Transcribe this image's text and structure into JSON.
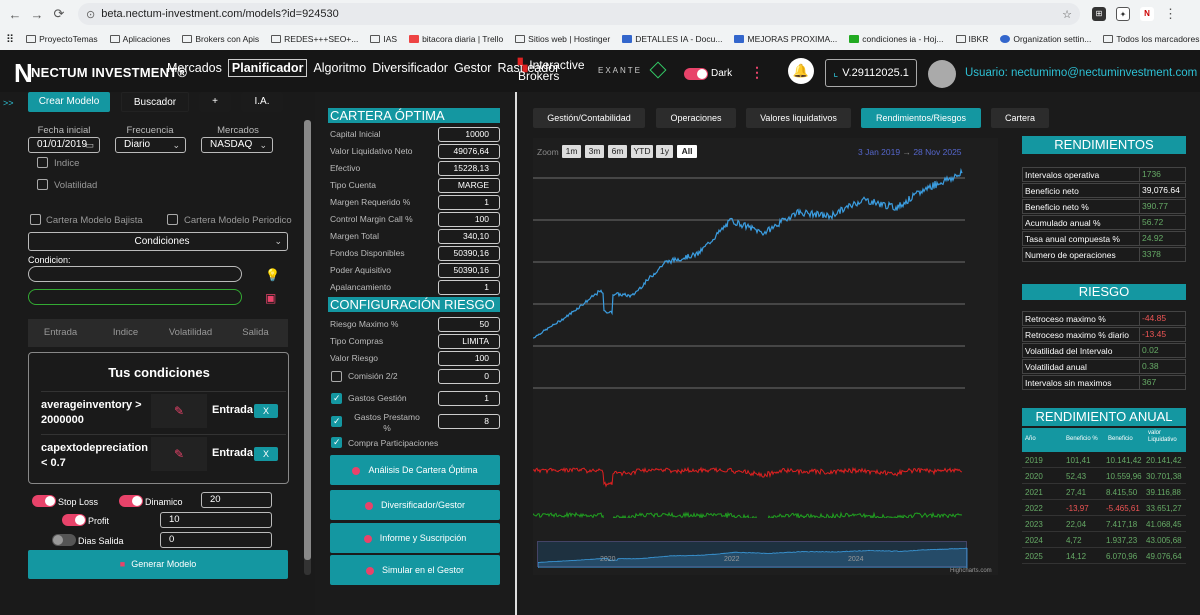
{
  "browser": {
    "url": "beta.nectum-investment.com/models?id=924530",
    "bookmarks": [
      "ProyectoTemas",
      "Aplicaciones",
      "Brokers con Apis",
      "REDES+++SEO+...",
      "IAS",
      "bitacora diaria | Trello",
      "Sitios web | Hostinger",
      "DETALLES IA - Docu...",
      "MEJORAS PROXIMA...",
      "condiciones ia - Hoj...",
      "IBKR",
      "Organization settin..."
    ],
    "bookmarks_right": "Todos los marcadores"
  },
  "nav": {
    "logo": "NECTUM INVESTMENT®",
    "logo_n": "N",
    "items": [
      "Mercados",
      "Planificador",
      "Algoritmo",
      "Diversificador",
      "Gestor",
      "Rastreador"
    ],
    "active": "Planificador",
    "broker": "Interactive Brokers",
    "broker2": "EXANTE",
    "dark_label": "Dark",
    "version": "V.29112025.1",
    "user": "Usuario: nectumimo@nectuminvestment.com"
  },
  "left": {
    "rail": ">>",
    "buttons": [
      "Crear Modelo",
      "Buscador",
      "+",
      "I.A."
    ],
    "fecha_label": "Fecha inicial",
    "fecha": "01/01/2019",
    "frecuencia_label": "Frecuencia",
    "frecuencia": "Diario",
    "mercados_label": "Mercados",
    "mercados": "NASDAQ",
    "indice": "Indice",
    "volatilidad": "Volatilidad",
    "bajista": "Cartera Modelo Bajista",
    "periodico": "Cartera Modelo Periodico",
    "condiciones": "Condiciones",
    "condicion_label": "Condicion:",
    "tabs": [
      "Entrada",
      "Indice",
      "Volatilidad",
      "Salida"
    ],
    "tus": "Tus condiciones",
    "conds": [
      {
        "text": "averageinventory > 2000000",
        "type": "Entrada",
        "x": "X"
      },
      {
        "text": "capextodepreciation < 0.7",
        "type": "Entrada",
        "x": "X"
      }
    ],
    "stoploss": "Stop Loss",
    "dinamico": "Dinamico",
    "dinamico_val": "20",
    "profit": "Profit",
    "profit_val": "10",
    "dias": "Dias Salida",
    "dias_val": "0",
    "generar": "Generar Modelo"
  },
  "mid": {
    "cartera_title": "CARTERA ÓPTIMA",
    "cartera": [
      [
        "Capital Inicial",
        "10000"
      ],
      [
        "Valor Liquidativo Neto",
        "49076,64"
      ],
      [
        "Efectivo",
        "15228,13"
      ],
      [
        "Tipo Cuenta",
        "MARGE"
      ],
      [
        "Margen Requerido %",
        "1"
      ],
      [
        "Control Margin Call %",
        "100"
      ],
      [
        "Margen Total",
        "340,10"
      ],
      [
        "Fondos Disponibles",
        "50390,16"
      ],
      [
        "Poder Aquisitivo",
        "50390,16"
      ],
      [
        "Apalancamiento",
        "1"
      ]
    ],
    "riesgo_title": "CONFIGURACIÓN RIESGO",
    "riesgo": [
      [
        "Riesgo Maximo %",
        "50"
      ],
      [
        "Tipo Compras",
        "LIMITA"
      ],
      [
        "Valor Riesgo",
        "100"
      ],
      [
        "Comisión 2/2",
        "0"
      ],
      [
        "Gastos Gestión",
        "1"
      ],
      [
        "Gastos Prestamo %",
        "8"
      ]
    ],
    "compra": "Compra Participaciones",
    "actions": [
      "Análisis De Cartera Óptima",
      "Diversificador/Gestor",
      "Informe y Suscripción",
      "Simular en el Gestor"
    ]
  },
  "right": {
    "tabs": [
      "Gestión/Contabilidad",
      "Operaciones",
      "Valores liquidativos",
      "Rendimientos/Riesgos",
      "Cartera"
    ],
    "active_tab": "Rendimientos/Riesgos",
    "zoom_label": "Zoom",
    "zoom": [
      "1m",
      "3m",
      "6m",
      "YTD",
      "1y",
      "All"
    ],
    "date_from": "3 Jan 2019",
    "arrow": "→",
    "date_to": "28 Nov 2025",
    "nav_years": [
      "2020",
      "2022",
      "2024"
    ],
    "credit": "Highcharts.com",
    "rend_title": "RENDIMIENTOS",
    "rend": [
      [
        "Intervalos operativa",
        "1736"
      ],
      [
        "Beneficio neto",
        "39,076.64"
      ],
      [
        "Beneficio neto %",
        "390.77"
      ],
      [
        "Acumulado anual %",
        "56.72"
      ],
      [
        "Tasa anual compuesta %",
        "24.92"
      ],
      [
        "Numero de operaciones",
        "3378"
      ]
    ],
    "riesgo_title": "RIESGO",
    "riesgo": [
      [
        "Retroceso maximo %",
        "-44.85"
      ],
      [
        "Retroceso maximo % diario",
        "-13.45"
      ],
      [
        "Volatilidad del Intervalo",
        "0.02"
      ],
      [
        "Volatilidad anual",
        "0.38"
      ],
      [
        "Intervalos sin maximos",
        "367"
      ]
    ],
    "anual_title": "RENDIMIENTO ANUAL",
    "anual_head": [
      "Año",
      "Beneficio %",
      "Beneficio",
      "valor Liquidativo"
    ],
    "anual": [
      [
        "2019",
        "101,41",
        "10.141,42",
        "20.141,42"
      ],
      [
        "2020",
        "52,43",
        "10.559,96",
        "30.701,38"
      ],
      [
        "2021",
        "27,41",
        "8.415,50",
        "39.116,88"
      ],
      [
        "2022",
        "-13,97",
        "-5.465,61",
        "33.651,27"
      ],
      [
        "2023",
        "22,04",
        "7.417,18",
        "41.068,45"
      ],
      [
        "2024",
        "4,72",
        "1.937,23",
        "43.005,68"
      ],
      [
        "2025",
        "14,12",
        "6.070,96",
        "49.076,64"
      ]
    ]
  },
  "chart_data": {
    "type": "line",
    "title": "",
    "x_range": [
      "3 Jan 2019",
      "28 Nov 2025"
    ],
    "series": [
      {
        "name": "",
        "color": "#3b9de0",
        "approx": [
          10000,
          15000,
          21000,
          20000,
          28000,
          30000,
          38000,
          35000,
          40000,
          39000,
          43000,
          41000,
          46000,
          49076
        ]
      },
      {
        "name": "",
        "color": "#e02020"
      },
      {
        "name": "",
        "color": "#20a020"
      }
    ]
  }
}
